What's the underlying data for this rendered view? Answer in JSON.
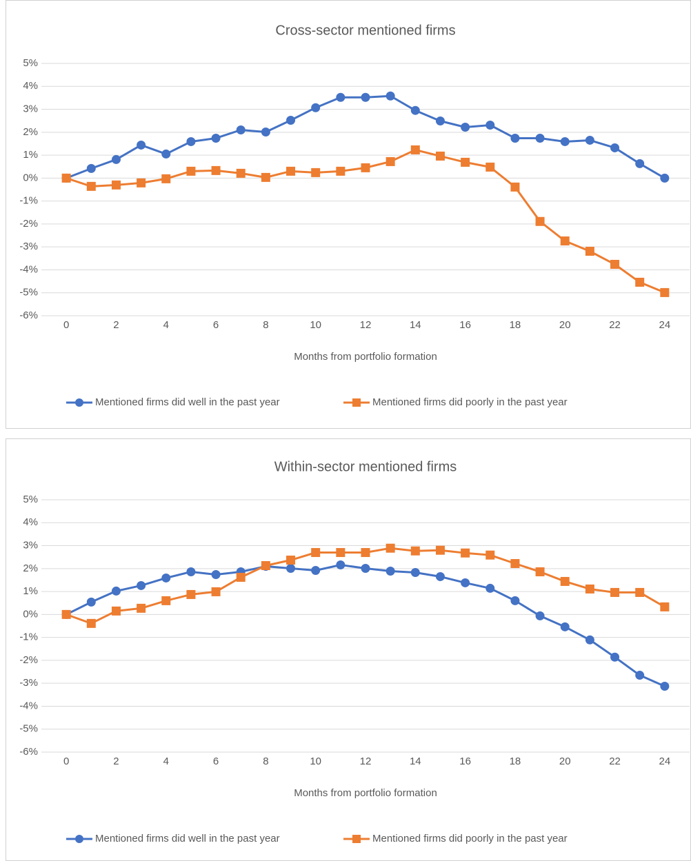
{
  "chart_data": [
    {
      "type": "line",
      "title": "Cross-sector mentioned firms",
      "x_label": "Months from portfolio formation",
      "x": [
        0,
        1,
        2,
        3,
        4,
        5,
        6,
        7,
        8,
        9,
        10,
        11,
        12,
        13,
        14,
        15,
        16,
        17,
        18,
        19,
        20,
        21,
        22,
        23,
        24
      ],
      "xlim": [
        -1,
        25
      ],
      "xticks": [
        0,
        2,
        4,
        6,
        8,
        10,
        12,
        14,
        16,
        18,
        20,
        22,
        24
      ],
      "ylim": [
        -6,
        5
      ],
      "yticks": [
        {
          "value": -6,
          "label": "-6%"
        },
        {
          "value": -5,
          "label": "-5%"
        },
        {
          "value": -4,
          "label": "-4%"
        },
        {
          "value": -3,
          "label": "-3%"
        },
        {
          "value": -2,
          "label": "-2%"
        },
        {
          "value": -1,
          "label": "-1%"
        },
        {
          "value": 0,
          "label": "0%"
        },
        {
          "value": 1,
          "label": "1%"
        },
        {
          "value": 2,
          "label": "2%"
        },
        {
          "value": 3,
          "label": "3%"
        },
        {
          "value": 4,
          "label": "4%"
        },
        {
          "value": 5,
          "label": "5%"
        }
      ],
      "grid": true,
      "legend": "bottom",
      "series": [
        {
          "name": "Mentioned firms did well in the past year",
          "color": "#4472c4",
          "marker": "circle",
          "values": [
            0,
            0.42,
            0.81,
            1.44,
            1.05,
            1.59,
            1.74,
            2.1,
            2.01,
            2.52,
            3.07,
            3.52,
            3.52,
            3.58,
            2.95,
            2.49,
            2.22,
            2.31,
            1.74,
            1.74,
            1.59,
            1.65,
            1.32,
            0.63,
            0
          ]
        },
        {
          "name": "Mentioned firms did poorly in the past year",
          "color": "#ed7d31",
          "marker": "square",
          "values": [
            0,
            -0.36,
            -0.3,
            -0.21,
            -0.03,
            0.3,
            0.33,
            0.21,
            0.03,
            0.3,
            0.24,
            0.3,
            0.45,
            0.72,
            1.23,
            0.96,
            0.69,
            0.48,
            -0.39,
            -1.89,
            -2.74,
            -3.19,
            -3.76,
            -4.54,
            -4.99
          ]
        }
      ]
    },
    {
      "type": "line",
      "title": "Within-sector mentioned firms",
      "x_label": "Months from portfolio formation",
      "x": [
        0,
        1,
        2,
        3,
        4,
        5,
        6,
        7,
        8,
        9,
        10,
        11,
        12,
        13,
        14,
        15,
        16,
        17,
        18,
        19,
        20,
        21,
        22,
        23,
        24
      ],
      "xlim": [
        -1,
        25
      ],
      "xticks": [
        0,
        2,
        4,
        6,
        8,
        10,
        12,
        14,
        16,
        18,
        20,
        22,
        24
      ],
      "ylim": [
        -6,
        5
      ],
      "yticks": [
        {
          "value": -6,
          "label": "-6%"
        },
        {
          "value": -5,
          "label": "-5%"
        },
        {
          "value": -4,
          "label": "-4%"
        },
        {
          "value": -3,
          "label": "-3%"
        },
        {
          "value": -2,
          "label": "-2%"
        },
        {
          "value": -1,
          "label": "-1%"
        },
        {
          "value": 0,
          "label": "0%"
        },
        {
          "value": 1,
          "label": "1%"
        },
        {
          "value": 2,
          "label": "2%"
        },
        {
          "value": 3,
          "label": "3%"
        },
        {
          "value": 4,
          "label": "4%"
        },
        {
          "value": 5,
          "label": "5%"
        }
      ],
      "grid": true,
      "legend": "bottom",
      "series": [
        {
          "name": "Mentioned firms did well in the past year",
          "color": "#4472c4",
          "marker": "circle",
          "values": [
            0,
            0.54,
            1.02,
            1.26,
            1.59,
            1.86,
            1.74,
            1.86,
            2.1,
            2.01,
            1.92,
            2.16,
            2.01,
            1.89,
            1.83,
            1.65,
            1.38,
            1.14,
            0.6,
            -0.06,
            -0.54,
            -1.11,
            -1.86,
            -2.65,
            -3.13
          ]
        },
        {
          "name": "Mentioned firms did poorly in the past year",
          "color": "#ed7d31",
          "marker": "square",
          "values": [
            0,
            -0.39,
            0.15,
            0.27,
            0.6,
            0.87,
            0.99,
            1.62,
            2.13,
            2.37,
            2.7,
            2.7,
            2.7,
            2.89,
            2.77,
            2.8,
            2.68,
            2.59,
            2.22,
            1.86,
            1.44,
            1.11,
            0.96,
            0.96,
            0.33
          ]
        }
      ]
    }
  ]
}
